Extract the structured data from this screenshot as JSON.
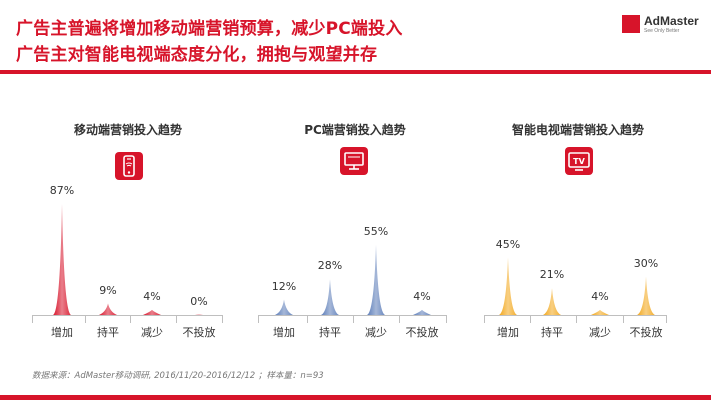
{
  "header": {
    "title_line1": "广告主普遍将增加移动端营销预算，减少PC端投入",
    "title_line2": "广告主对智能电视端态度分化，拥抱与观望并存",
    "logo_text": "AdMaster",
    "logo_sub": "See Only Better",
    "accent_color": "#d7142a"
  },
  "icons": [
    "mobile-phone-icon",
    "monitor-icon",
    "tv-icon"
  ],
  "footer": {
    "source": "数据来源：AdMaster移动调研, 2016/11/20-2016/12/12 ；样本量：n=93"
  },
  "chart_data": [
    {
      "type": "bar",
      "title": "移动端营销投入趋势",
      "categories": [
        "增加",
        "持平",
        "减少",
        "不投放"
      ],
      "values": [
        87,
        9,
        4,
        0
      ],
      "value_labels": [
        "87%",
        "9%",
        "4%",
        "0%"
      ],
      "color": "#d7142a",
      "ylim": [
        0,
        90
      ]
    },
    {
      "type": "bar",
      "title": "PC端营销投入趋势",
      "categories": [
        "增加",
        "持平",
        "减少",
        "不投放"
      ],
      "values": [
        12,
        28,
        55,
        4
      ],
      "value_labels": [
        "12%",
        "28%",
        "55%",
        "4%"
      ],
      "color": "#5b7cb8",
      "ylim": [
        0,
        90
      ]
    },
    {
      "type": "bar",
      "title": "智能电视端营销投入趋势",
      "categories": [
        "增加",
        "持平",
        "减少",
        "不投放"
      ],
      "values": [
        45,
        21,
        4,
        30
      ],
      "value_labels": [
        "45%",
        "21%",
        "4%",
        "30%"
      ],
      "color": "#f2a71b",
      "ylim": [
        0,
        90
      ]
    }
  ]
}
